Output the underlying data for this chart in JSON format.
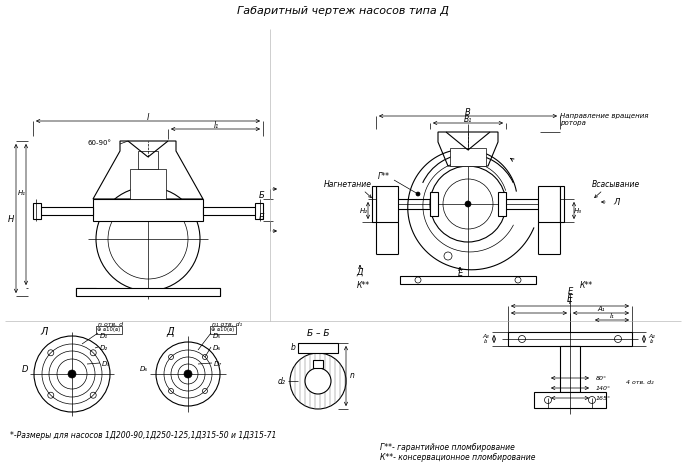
{
  "title": "Габаритный чертеж насосов типа Д",
  "bg_color": "#ffffff",
  "line_color": "#000000",
  "footnote1": "*-Размеры для насосов 1Д200-90,1Д250-125,1Д315-50 и 1Д315-71",
  "footnote2": "Г**- гарантийное пломбирование",
  "footnote3": "К**- консервационное пломбирование"
}
